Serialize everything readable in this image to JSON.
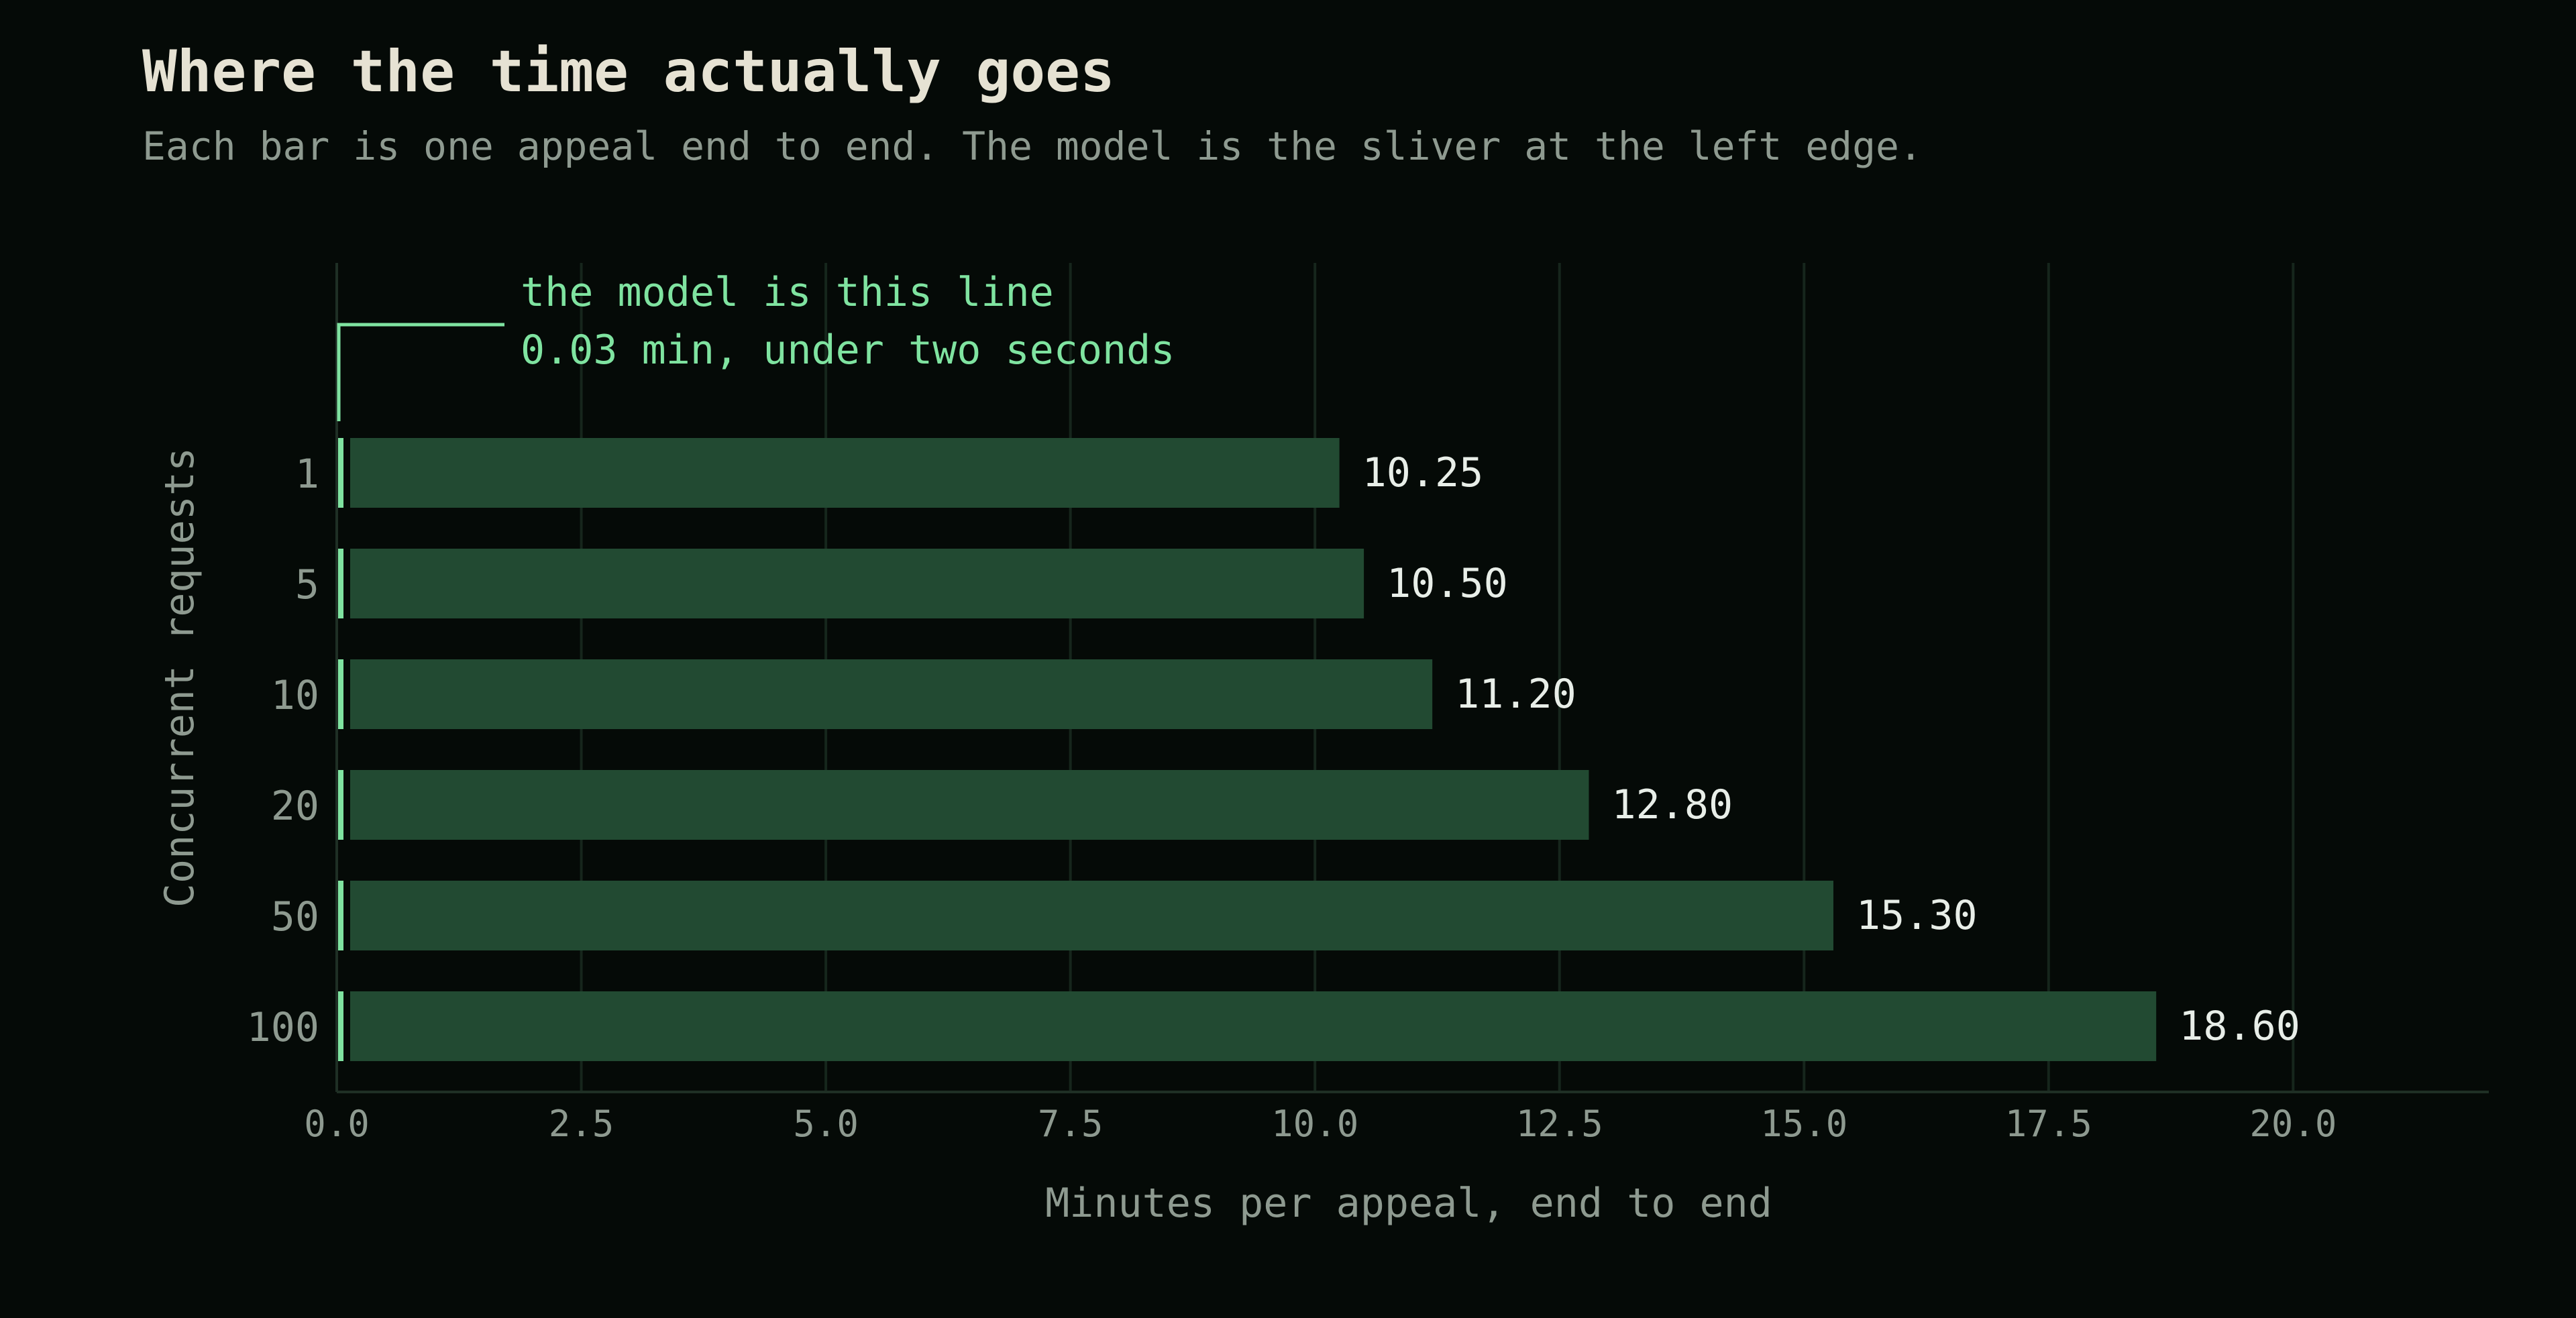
{
  "title": "Where the time actually goes",
  "subtitle": "Each bar is one appeal end to end. The model is the sliver at the left edge.",
  "colors": {
    "background": "#050a07",
    "bar": "#224a32",
    "model_sliver": "#7fe3a0",
    "gridline": "#16261c",
    "axis": "#1f2f25",
    "tick_text": "#8e9a90",
    "value_text": "#e8eee8",
    "title_text": "#e6e2d3"
  },
  "chart_data": {
    "type": "bar",
    "orientation": "horizontal",
    "stacked": true,
    "categories": [
      "1",
      "5",
      "10",
      "20",
      "50",
      "100"
    ],
    "series": [
      {
        "values": [
          0.03,
          0.03,
          0.03,
          0.03,
          0.03,
          0.03
        ]
      },
      {
        "values": [
          10.22,
          10.47,
          11.17,
          12.77,
          15.27,
          18.57
        ]
      }
    ],
    "totals": [
      10.25,
      10.5,
      11.2,
      12.8,
      15.3,
      18.6
    ],
    "value_labels": [
      "10.25",
      "10.50",
      "11.20",
      "12.80",
      "15.30",
      "18.60"
    ],
    "xlabel": "Minutes per appeal, end to end",
    "ylabel": "Concurrent requests",
    "xlim": [
      0,
      22
    ],
    "xticks": [
      0,
      2.5,
      5,
      7.5,
      10,
      12.5,
      15,
      17.5,
      20
    ],
    "xtick_labels": [
      "0.0",
      "2.5",
      "5.0",
      "7.5",
      "10.0",
      "12.5",
      "15.0",
      "17.5",
      "20.0"
    ],
    "grid": "vertical",
    "annotation": {
      "lines": [
        "the model is this line",
        "0.03 min, under two seconds"
      ]
    }
  }
}
